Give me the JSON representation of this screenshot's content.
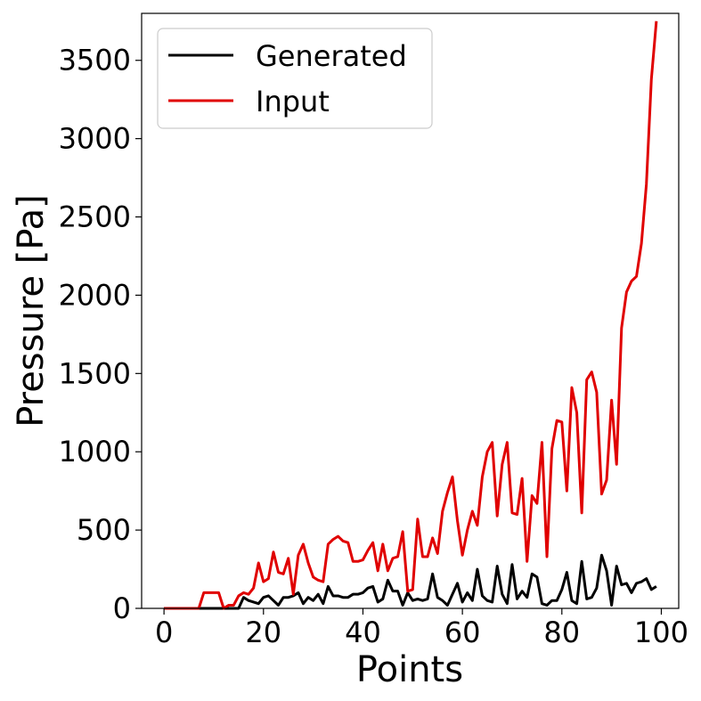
{
  "chart_data": {
    "type": "line",
    "title": "",
    "xlabel": "Points",
    "ylabel": "Pressure [Pa]",
    "xlim": [
      -4.5,
      103.5
    ],
    "ylim": [
      0,
      3800
    ],
    "xticks": [
      0,
      20,
      40,
      60,
      80,
      100
    ],
    "yticks": [
      0,
      500,
      1000,
      1500,
      2000,
      2500,
      3000,
      3500
    ],
    "grid": false,
    "legend_position": "top-left",
    "x": [
      0,
      1,
      2,
      3,
      4,
      5,
      6,
      7,
      8,
      9,
      10,
      11,
      12,
      13,
      14,
      15,
      16,
      17,
      18,
      19,
      20,
      21,
      22,
      23,
      24,
      25,
      26,
      27,
      28,
      29,
      30,
      31,
      32,
      33,
      34,
      35,
      36,
      37,
      38,
      39,
      40,
      41,
      42,
      43,
      44,
      45,
      46,
      47,
      48,
      49,
      50,
      51,
      52,
      53,
      54,
      55,
      56,
      57,
      58,
      59,
      60,
      61,
      62,
      63,
      64,
      65,
      66,
      67,
      68,
      69,
      70,
      71,
      72,
      73,
      74,
      75,
      76,
      77,
      78,
      79,
      80,
      81,
      82,
      83,
      84,
      85,
      86,
      87,
      88,
      89,
      90,
      91,
      92,
      93,
      94,
      95,
      96,
      97,
      98,
      99
    ],
    "series": [
      {
        "name": "Generated",
        "color": "#000000",
        "values": [
          0,
          0,
          0,
          0,
          0,
          0,
          0,
          0,
          0,
          0,
          0,
          0,
          0,
          0,
          0,
          0,
          70,
          50,
          40,
          30,
          70,
          80,
          50,
          20,
          70,
          70,
          80,
          100,
          30,
          70,
          50,
          90,
          30,
          140,
          80,
          80,
          70,
          70,
          90,
          90,
          100,
          130,
          140,
          40,
          60,
          180,
          110,
          110,
          20,
          100,
          50,
          60,
          50,
          60,
          220,
          70,
          50,
          20,
          90,
          160,
          40,
          100,
          50,
          250,
          80,
          50,
          40,
          270,
          90,
          30,
          280,
          60,
          110,
          70,
          220,
          200,
          30,
          20,
          50,
          50,
          120,
          230,
          50,
          30,
          300,
          60,
          70,
          130,
          340,
          240,
          20,
          270,
          150,
          160,
          100,
          160,
          170,
          190,
          120,
          140
        ]
      },
      {
        "name": "Input",
        "color": "#e00000",
        "values": [
          0,
          0,
          0,
          0,
          0,
          0,
          0,
          0,
          100,
          100,
          100,
          100,
          0,
          20,
          20,
          80,
          100,
          90,
          130,
          290,
          170,
          190,
          360,
          230,
          220,
          320,
          90,
          340,
          410,
          290,
          200,
          180,
          170,
          410,
          440,
          460,
          430,
          420,
          300,
          300,
          310,
          370,
          420,
          240,
          410,
          240,
          320,
          330,
          490,
          110,
          120,
          570,
          330,
          330,
          450,
          350,
          620,
          740,
          840,
          560,
          340,
          500,
          620,
          530,
          840,
          1000,
          1060,
          590,
          920,
          1060,
          610,
          600,
          830,
          300,
          720,
          670,
          1060,
          330,
          1020,
          1200,
          1190,
          750,
          1410,
          1250,
          610,
          1460,
          1510,
          1380,
          730,
          820,
          1330,
          920,
          1790,
          2020,
          2090,
          2120,
          2330,
          2710,
          3380,
          3750
        ]
      }
    ]
  }
}
